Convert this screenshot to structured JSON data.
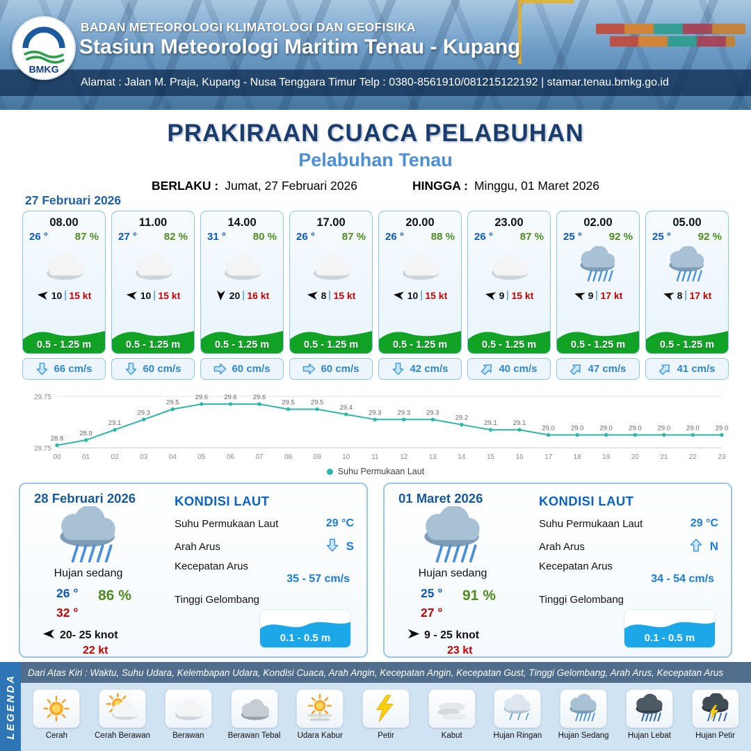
{
  "colors": {
    "accent_blue": "#1f5fa6",
    "navy": "#1b3d6e",
    "sub_blue": "#4b8fd4",
    "temp_blue": "#0a58c0",
    "humidity_green": "#4e8c1f",
    "gust_red": "#c00000",
    "wave_green": "#12a326",
    "current_blue": "#2f86cf",
    "chart_line_teal": "#2cb5a8"
  },
  "header": {
    "logo_text": "BMKG",
    "org": "BADAN METEOROLOGI KLIMATOLOGI DAN GEOFISIKA",
    "station": "Stasiun Meteorologi Maritim Tenau - Kupang",
    "address": "Alamat : Jalan M. Praja, Kupang - Nusa Tenggara Timur Telp : 0380-8561910/081215122192  | stamar.tenau.bmkg.go.id"
  },
  "title": {
    "main": "PRAKIRAAN CUACA PELABUHAN",
    "sub": "Pelabuhan Tenau",
    "berlaku_label": "BERLAKU :",
    "berlaku": "Jumat, 27 Februari 2026",
    "hingga_label": "HINGGA :",
    "hingga": "Minggu, 01 Maret 2026"
  },
  "forecast": {
    "date": "27 Februari 2026",
    "cards": [
      {
        "time": "08.00",
        "temp": "26 °",
        "rh": "87 %",
        "icon": "berawan",
        "wind_deg": 187,
        "wind": "10",
        "gust": "15 kt",
        "wave": "0.5 - 1.25 m",
        "current_deg": 180,
        "current": "66 cm/s"
      },
      {
        "time": "11.00",
        "temp": "27 °",
        "rh": "82 %",
        "icon": "berawan",
        "wind_deg": 187,
        "wind": "10",
        "gust": "15 kt",
        "wave": "0.5 - 1.25 m",
        "current_deg": 180,
        "current": "60 cm/s"
      },
      {
        "time": "14.00",
        "temp": "31 °",
        "rh": "80 %",
        "icon": "berawan",
        "wind_deg": 93,
        "wind": "20",
        "gust": "16 kt",
        "wave": "0.5 - 1.25 m",
        "current_deg": 90,
        "current": "60 cm/s"
      },
      {
        "time": "17.00",
        "temp": "26 °",
        "rh": "87 %",
        "icon": "berawan",
        "wind_deg": 187,
        "wind": "8",
        "gust": "15 kt",
        "wave": "0.5 - 1.25 m",
        "current_deg": 90,
        "current": "60 cm/s"
      },
      {
        "time": "20.00",
        "temp": "26 °",
        "rh": "88 %",
        "icon": "berawan",
        "wind_deg": 187,
        "wind": "10",
        "gust": "15 kt",
        "wave": "0.5 - 1.25 m",
        "current_deg": 180,
        "current": "42 cm/s"
      },
      {
        "time": "23.00",
        "temp": "26 °",
        "rh": "87 %",
        "icon": "berawan",
        "wind_deg": 193,
        "wind": "9",
        "gust": "15 kt",
        "wave": "0.5 - 1.25 m",
        "current_deg": 45,
        "current": "40 cm/s"
      },
      {
        "time": "02.00",
        "temp": "25 °",
        "rh": "92 %",
        "icon": "hujan-sedang",
        "wind_deg": 198,
        "wind": "9",
        "gust": "17 kt",
        "wave": "0.5 - 1.25 m",
        "current_deg": 45,
        "current": "47 cm/s"
      },
      {
        "time": "05.00",
        "temp": "25 °",
        "rh": "92 %",
        "icon": "hujan-sedang",
        "wind_deg": 198,
        "wind": "8",
        "gust": "17 kt",
        "wave": "0.5 - 1.25 m",
        "current_deg": 45,
        "current": "41 cm/s"
      }
    ]
  },
  "chart_data": {
    "type": "line",
    "series_name": "Suhu Permukaan Laut",
    "x": [
      "00",
      "01",
      "02",
      "03",
      "04",
      "05",
      "06",
      "07",
      "08",
      "09",
      "10",
      "11",
      "12",
      "13",
      "14",
      "15",
      "16",
      "17",
      "18",
      "19",
      "20",
      "21",
      "22",
      "23"
    ],
    "values": [
      28.8,
      28.9,
      29.1,
      29.3,
      29.5,
      29.6,
      29.6,
      29.6,
      29.5,
      29.5,
      29.4,
      29.3,
      29.3,
      29.3,
      29.2,
      29.1,
      29.1,
      29.0,
      29.0,
      29.0,
      29.0,
      29.0,
      29.0,
      29.0
    ],
    "ylim": [
      28.75,
      29.75
    ],
    "grid": false,
    "legend_position": "bottom"
  },
  "outlook": {
    "labels": {
      "title": "KONDISI LAUT",
      "sst": "Suhu Permukaan Laut",
      "dir": "Arah Arus",
      "speed": "Kecepatan Arus",
      "wave": "Tinggi Gelombang"
    },
    "days": [
      {
        "date": "28 Februari 2026",
        "icon": "hujan-sedang",
        "condition": "Hujan sedang",
        "temp_min": "26 °",
        "humidity": "86 %",
        "temp_max": "32 °",
        "wind_deg": 180,
        "wind_range": "20- 25 knot",
        "gust": "22 kt",
        "sst": "29 °C",
        "current_deg": 180,
        "current_dir": "S",
        "current_speed": "35 - 57 cm/s",
        "wave": "0.1 - 0.5 m"
      },
      {
        "date": "01 Maret 2026",
        "icon": "hujan-sedang",
        "condition": "Hujan sedang",
        "temp_min": "25 °",
        "humidity": "91 %",
        "temp_max": "27 °",
        "wind_deg": 0,
        "wind_range": "9 - 25 knot",
        "gust": "23 kt",
        "sst": "29 °C",
        "current_deg": 0,
        "current_dir": "N",
        "current_speed": "34 - 54 cm/s",
        "wave": "0.1 - 0.5 m"
      }
    ]
  },
  "legend": {
    "title": "LEGENDA",
    "note": "Dari Atas Kiri : Waktu, Suhu Udara, Kelembapan Udara, Kondisi Cuaca, Arah Angin, Kecepatan Angin, Kecepatan Gust, Tinggi Gelombang, Arah Arus, Kecepatan Arus",
    "items": [
      {
        "label": "Cerah",
        "icon": "cerah"
      },
      {
        "label": "Cerah Berawan",
        "icon": "cerah-berawan"
      },
      {
        "label": "Berawan",
        "icon": "berawan"
      },
      {
        "label": "Berawan Tebal",
        "icon": "berawan-tebal"
      },
      {
        "label": "Udara Kabur",
        "icon": "udara-kabur"
      },
      {
        "label": "Petir",
        "icon": "petir"
      },
      {
        "label": "Kabut",
        "icon": "kabut"
      },
      {
        "label": "Hujan Ringan",
        "icon": "hujan-ringan"
      },
      {
        "label": "Hujan Sedang",
        "icon": "hujan-sedang"
      },
      {
        "label": "Hujan Lebat",
        "icon": "hujan-lebat"
      },
      {
        "label": "Hujan Petir",
        "icon": "hujan-petir"
      }
    ]
  }
}
